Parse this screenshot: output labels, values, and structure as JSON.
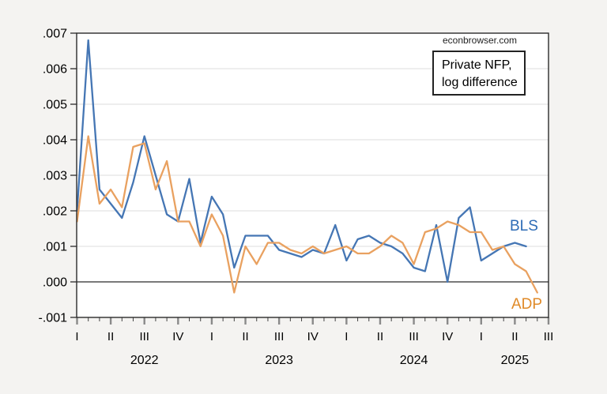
{
  "page": {
    "background": "#f4f3f1",
    "plot_background": "#ffffff",
    "border_color": "#2b2b2b",
    "gridline_color": "#dcdcdc"
  },
  "header": {
    "watermark": "econbrowser.com"
  },
  "annotation": {
    "line1": "Private NFP,",
    "line2": "log difference"
  },
  "chart_data": {
    "type": "line",
    "title": "Private NFP, log difference",
    "watermark": "econbrowser.com",
    "frequency": "monthly",
    "x_start": "2022-01",
    "ylim": [
      -0.001,
      0.007
    ],
    "ytick_step": 0.001,
    "ytick_labels": [
      ".007",
      ".006",
      ".005",
      ".004",
      ".003",
      ".002",
      ".001",
      ".000",
      "-.001"
    ],
    "ytick_values": [
      0.007,
      0.006,
      0.005,
      0.004,
      0.003,
      0.002,
      0.001,
      0.0,
      -0.001
    ],
    "zero_line_emphasized": true,
    "grid": true,
    "legend_position": "end-of-line-labels",
    "xtick_quarter_labels": [
      "I",
      "II",
      "III",
      "IV",
      "I",
      "II",
      "III",
      "IV",
      "I",
      "II",
      "III",
      "IV",
      "I",
      "II",
      "III"
    ],
    "year_labels": [
      "2022",
      "2023",
      "2024",
      "2025"
    ],
    "series": [
      {
        "name": "BLS",
        "color": "#4576b4",
        "label_color": "#2e6cb6",
        "start_month": "2022-01",
        "values": [
          0.002,
          0.0068,
          0.0026,
          0.0022,
          0.0018,
          0.0028,
          0.0041,
          0.003,
          0.0019,
          0.0017,
          0.0029,
          0.0011,
          0.0024,
          0.0019,
          0.0004,
          0.0013,
          0.0013,
          0.0013,
          0.0009,
          0.0008,
          0.0007,
          0.0009,
          0.0008,
          0.0016,
          0.0006,
          0.0012,
          0.0013,
          0.0011,
          0.001,
          0.0008,
          0.0004,
          0.0003,
          0.0016,
          0.0,
          0.0018,
          0.0021,
          0.0006,
          0.0008,
          0.001,
          0.0011,
          0.001
        ]
      },
      {
        "name": "ADP",
        "color": "#e9a160",
        "label_color": "#e08a28",
        "start_month": "2022-01",
        "values": [
          0.0017,
          0.0041,
          0.0022,
          0.0026,
          0.0021,
          0.0038,
          0.0039,
          0.0026,
          0.0034,
          0.0017,
          0.0017,
          0.001,
          0.0019,
          0.0013,
          -0.0003,
          0.001,
          0.0005,
          0.0011,
          0.0011,
          0.0009,
          0.0008,
          0.001,
          0.0008,
          0.0009,
          0.001,
          0.0008,
          0.0008,
          0.001,
          0.0013,
          0.0011,
          0.0005,
          0.0014,
          0.0015,
          0.0017,
          0.0016,
          0.0014,
          0.0014,
          0.0009,
          0.001,
          0.0005,
          0.0003,
          -0.0003
        ]
      }
    ]
  }
}
